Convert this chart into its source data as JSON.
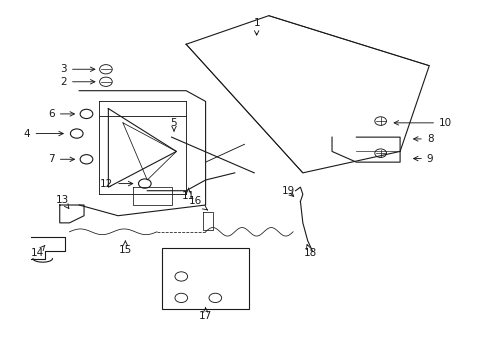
{
  "background_color": "#ffffff",
  "line_color": "#1a1a1a",
  "text_color": "#1a1a1a",
  "fig_width": 4.89,
  "fig_height": 3.6,
  "dpi": 100,
  "label_params": {
    "1": [
      0.525,
      0.94,
      0.525,
      0.895,
      "center"
    ],
    "2": [
      0.135,
      0.775,
      0.2,
      0.775,
      "right"
    ],
    "3": [
      0.135,
      0.81,
      0.2,
      0.81,
      "right"
    ],
    "4": [
      0.06,
      0.63,
      0.135,
      0.63,
      "right"
    ],
    "5": [
      0.355,
      0.66,
      0.355,
      0.635,
      "center"
    ],
    "6": [
      0.11,
      0.685,
      0.158,
      0.685,
      "right"
    ],
    "7": [
      0.11,
      0.558,
      0.158,
      0.558,
      "right"
    ],
    "8": [
      0.875,
      0.615,
      0.84,
      0.615,
      "left"
    ],
    "9": [
      0.875,
      0.56,
      0.84,
      0.56,
      "left"
    ],
    "10": [
      0.9,
      0.66,
      0.8,
      0.66,
      "left"
    ],
    "11": [
      0.385,
      0.455,
      0.385,
      0.478,
      "center"
    ],
    "12": [
      0.23,
      0.49,
      0.278,
      0.49,
      "right"
    ],
    "13": [
      0.125,
      0.445,
      0.14,
      0.418,
      "center"
    ],
    "14": [
      0.075,
      0.295,
      0.09,
      0.318,
      "center"
    ],
    "15": [
      0.255,
      0.305,
      0.255,
      0.332,
      "center"
    ],
    "16": [
      0.4,
      0.44,
      0.425,
      0.415,
      "center"
    ],
    "17": [
      0.42,
      0.118,
      0.42,
      0.145,
      "center"
    ],
    "18": [
      0.635,
      0.295,
      0.628,
      0.322,
      "center"
    ],
    "19": [
      0.59,
      0.468,
      0.607,
      0.447,
      "center"
    ]
  }
}
